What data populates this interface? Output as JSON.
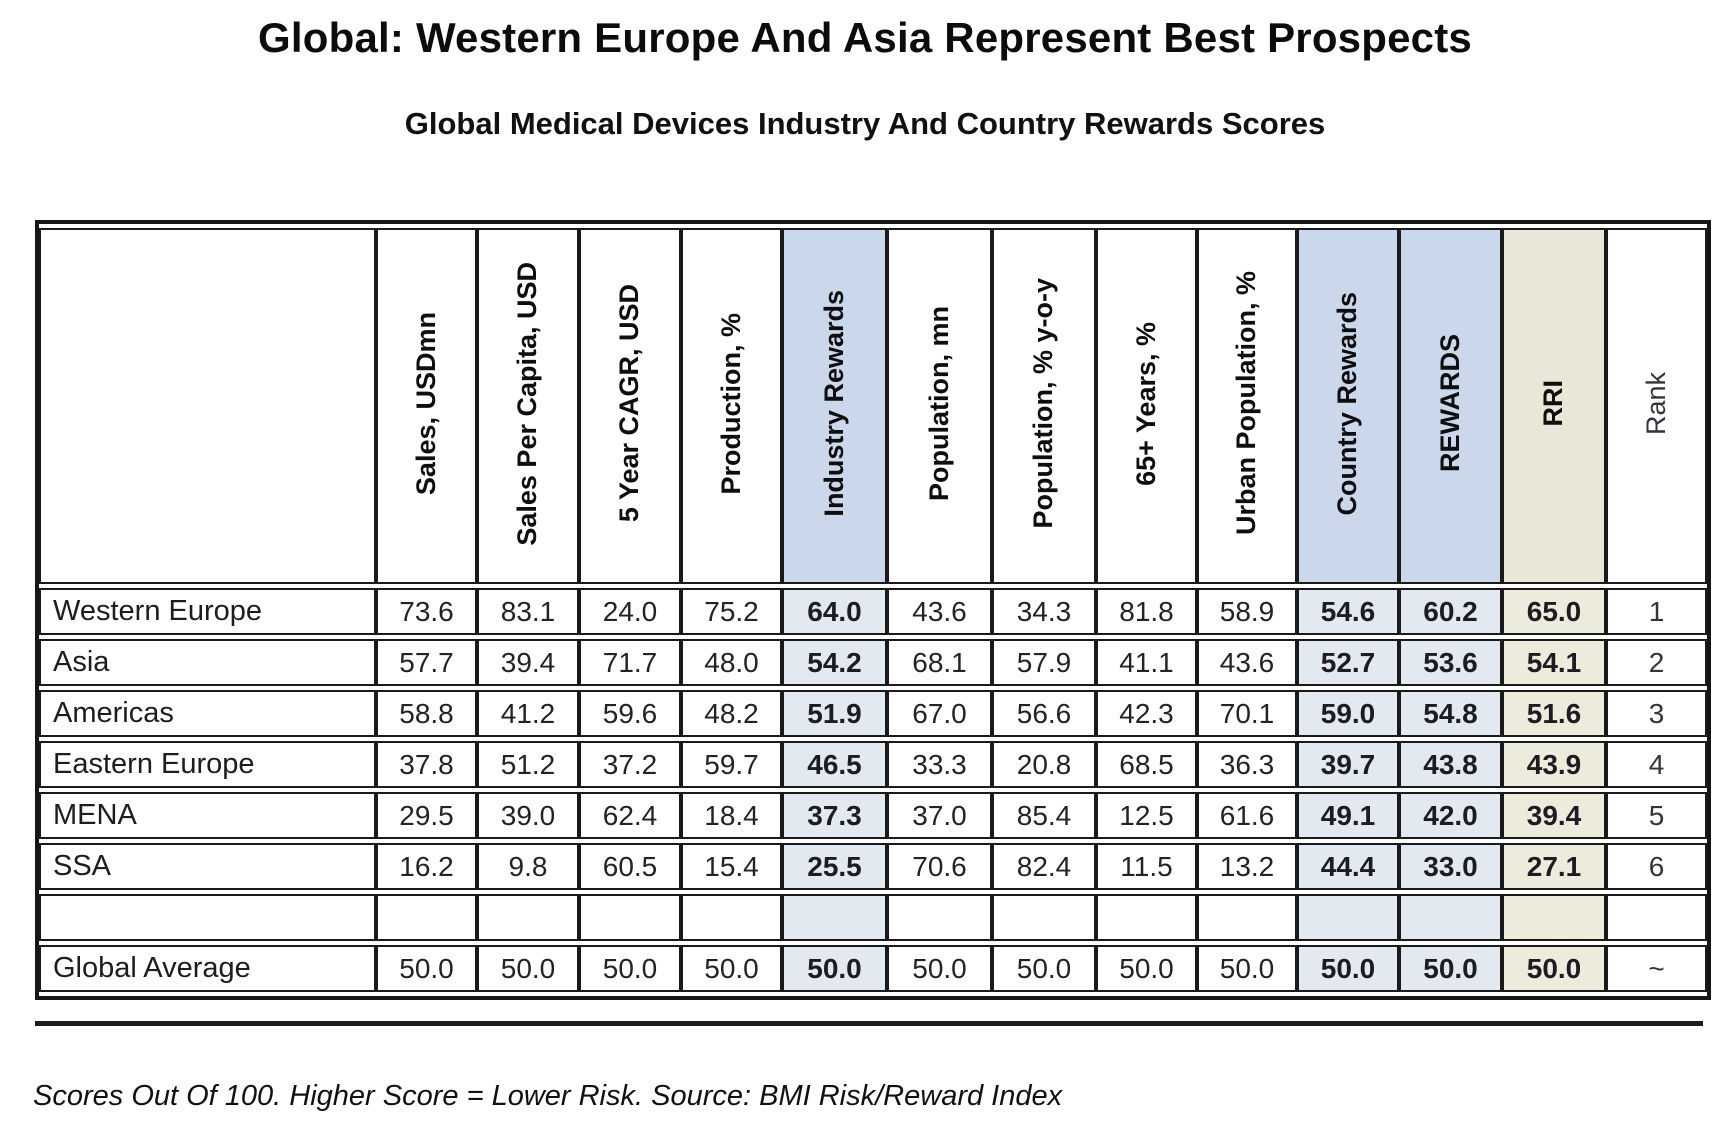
{
  "page": {
    "title": "Global: Western Europe And Asia Represent Best Prospects",
    "subtitle": "Global Medical Devices Industry And Country Rewards Scores",
    "footnote": "Scores Out Of 100. Higher Score = Lower Risk. Source: BMI Risk/Reward Index"
  },
  "colors": {
    "header_highlight_blue": "#cbd8ec",
    "cell_highlight_blue": "#e3e9f1",
    "header_highlight_beige": "#e9e7d7",
    "cell_highlight_beige": "#edebdc",
    "border": "#1a1a1a"
  },
  "table": {
    "columns": [
      {
        "label": "Sales, USDmn",
        "highlight": null
      },
      {
        "label": "Sales Per Capita, USD",
        "highlight": null
      },
      {
        "label": "5 Year CAGR, USD",
        "highlight": null
      },
      {
        "label": "Production, %",
        "highlight": null
      },
      {
        "label": "Industry Rewards",
        "highlight": "blue"
      },
      {
        "label": "Population, mn",
        "highlight": null
      },
      {
        "label": "Population, % y-o-y",
        "highlight": null
      },
      {
        "label": "65+ Years, %",
        "highlight": null
      },
      {
        "label": "Urban Population, %",
        "highlight": null
      },
      {
        "label": "Country Rewards",
        "highlight": "blue"
      },
      {
        "label": "REWARDS",
        "highlight": "blue"
      },
      {
        "label": "RRI",
        "highlight": "beige"
      },
      {
        "label": "Rank",
        "highlight": null,
        "plain": true
      }
    ],
    "rows": [
      {
        "name": "Western Europe",
        "values": [
          "73.6",
          "83.1",
          "24.0",
          "75.2",
          "64.0",
          "43.6",
          "34.3",
          "81.8",
          "58.9",
          "54.6",
          "60.2",
          "65.0",
          "1"
        ]
      },
      {
        "name": "Asia",
        "values": [
          "57.7",
          "39.4",
          "71.7",
          "48.0",
          "54.2",
          "68.1",
          "57.9",
          "41.1",
          "43.6",
          "52.7",
          "53.6",
          "54.1",
          "2"
        ]
      },
      {
        "name": "Americas",
        "values": [
          "58.8",
          "41.2",
          "59.6",
          "48.2",
          "51.9",
          "67.0",
          "56.6",
          "42.3",
          "70.1",
          "59.0",
          "54.8",
          "51.6",
          "3"
        ]
      },
      {
        "name": "Eastern Europe",
        "values": [
          "37.8",
          "51.2",
          "37.2",
          "59.7",
          "46.5",
          "33.3",
          "20.8",
          "68.5",
          "36.3",
          "39.7",
          "43.8",
          "43.9",
          "4"
        ]
      },
      {
        "name": "MENA",
        "values": [
          "29.5",
          "39.0",
          "62.4",
          "18.4",
          "37.3",
          "37.0",
          "85.4",
          "12.5",
          "61.6",
          "49.1",
          "42.0",
          "39.4",
          "5"
        ]
      },
      {
        "name": "SSA",
        "values": [
          "16.2",
          "9.8",
          "60.5",
          "15.4",
          "25.5",
          "70.6",
          "82.4",
          "11.5",
          "13.2",
          "44.4",
          "33.0",
          "27.1",
          "6"
        ]
      },
      {
        "name": "",
        "values": [
          "",
          "",
          "",
          "",
          "",
          "",
          "",
          "",
          "",
          "",
          "",
          "",
          ""
        ]
      },
      {
        "name": "Global Average",
        "values": [
          "50.0",
          "50.0",
          "50.0",
          "50.0",
          "50.0",
          "50.0",
          "50.0",
          "50.0",
          "50.0",
          "50.0",
          "50.0",
          "50.0",
          "~"
        ]
      }
    ]
  }
}
